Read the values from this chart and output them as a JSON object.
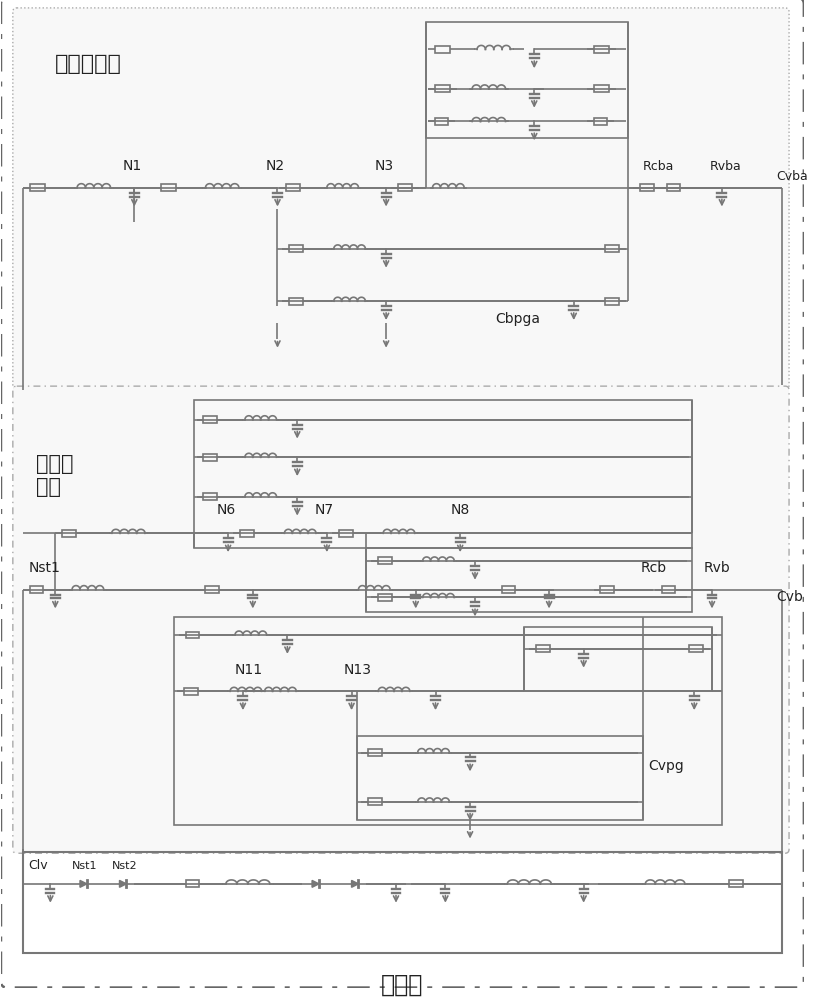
{
  "bg_color": "#ffffff",
  "lc": "#777777",
  "tc": "#222222",
  "right_artery_label": "右冠状动脉",
  "left_artery_label": "左冠状\n动脉",
  "systemic_label": "体循环",
  "fig_w": 8.13,
  "fig_h": 10.0,
  "dpi": 100
}
